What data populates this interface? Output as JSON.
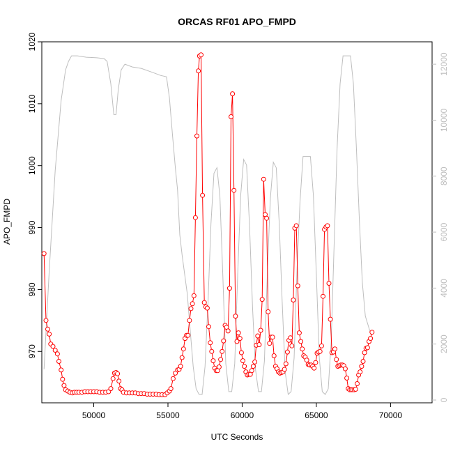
{
  "chart_data": {
    "type": "line",
    "title": "ORCAS RF01 APO_FMPD",
    "xlabel": "UTC Seconds",
    "ylabel": "APO_FMPD",
    "xlim": [
      46500,
      72800
    ],
    "ylim": [
      961.7,
      1020
    ],
    "y2lim": [
      -100,
      12800
    ],
    "x_ticks": [
      50000,
      55000,
      60000,
      65000,
      70000
    ],
    "y_ticks": [
      970,
      980,
      990,
      1000,
      1010,
      1020
    ],
    "y2_ticks": [
      0,
      2000,
      4000,
      6000,
      8000,
      10000,
      12000
    ],
    "grid": false,
    "legend": "none",
    "series": [
      {
        "role": "APO_FMPD (left axis)",
        "color": "#ff0000",
        "style": "line+open-circles",
        "points": [
          [
            46650,
            985.8
          ],
          [
            46780,
            975.0
          ],
          [
            46900,
            973.6
          ],
          [
            47000,
            972.8
          ],
          [
            47100,
            971.2
          ],
          [
            47250,
            970.8
          ],
          [
            47400,
            970.2
          ],
          [
            47550,
            969.6
          ],
          [
            47650,
            968.4
          ],
          [
            47800,
            967.0
          ],
          [
            47900,
            965.5
          ],
          [
            48000,
            964.5
          ],
          [
            48100,
            963.8
          ],
          [
            48250,
            963.6
          ],
          [
            48400,
            963.4
          ],
          [
            48550,
            963.3
          ],
          [
            48700,
            963.4
          ],
          [
            48850,
            963.4
          ],
          [
            49000,
            963.4
          ],
          [
            49200,
            963.4
          ],
          [
            49400,
            963.5
          ],
          [
            49600,
            963.5
          ],
          [
            49800,
            963.5
          ],
          [
            50000,
            963.5
          ],
          [
            50200,
            963.5
          ],
          [
            50400,
            963.4
          ],
          [
            50600,
            963.4
          ],
          [
            50800,
            963.4
          ],
          [
            51000,
            963.5
          ],
          [
            51150,
            964.0
          ],
          [
            51300,
            965.6
          ],
          [
            51400,
            966.5
          ],
          [
            51500,
            966.6
          ],
          [
            51600,
            966.4
          ],
          [
            51700,
            965.2
          ],
          [
            51800,
            964.0
          ],
          [
            51900,
            963.8
          ],
          [
            52000,
            963.4
          ],
          [
            52200,
            963.3
          ],
          [
            52400,
            963.3
          ],
          [
            52600,
            963.3
          ],
          [
            52800,
            963.3
          ],
          [
            53000,
            963.2
          ],
          [
            53200,
            963.2
          ],
          [
            53400,
            963.2
          ],
          [
            53600,
            963.1
          ],
          [
            53800,
            963.1
          ],
          [
            54000,
            963.1
          ],
          [
            54200,
            963.1
          ],
          [
            54400,
            963.0
          ],
          [
            54600,
            963.0
          ],
          [
            54800,
            963.0
          ],
          [
            54950,
            963.3
          ],
          [
            55100,
            963.6
          ],
          [
            55200,
            964.0
          ],
          [
            55350,
            965.6
          ],
          [
            55500,
            966.5
          ],
          [
            55650,
            967.0
          ],
          [
            55750,
            967.1
          ],
          [
            55850,
            967.6
          ],
          [
            55950,
            969.0
          ],
          [
            56050,
            970.4
          ],
          [
            56150,
            972.1
          ],
          [
            56250,
            972.6
          ],
          [
            56350,
            972.6
          ],
          [
            56450,
            975.0
          ],
          [
            56550,
            976.9
          ],
          [
            56650,
            977.7
          ],
          [
            56750,
            979.0
          ],
          [
            56850,
            991.6
          ],
          [
            56950,
            1004.8
          ],
          [
            57050,
            1015.3
          ],
          [
            57130,
            1017.7
          ],
          [
            57230,
            1017.9
          ],
          [
            57330,
            995.2
          ],
          [
            57450,
            977.9
          ],
          [
            57550,
            977.2
          ],
          [
            57650,
            977.0
          ],
          [
            57750,
            974.0
          ],
          [
            57850,
            971.4
          ],
          [
            57950,
            970.0
          ],
          [
            58050,
            968.5
          ],
          [
            58150,
            967.3
          ],
          [
            58250,
            966.9
          ],
          [
            58350,
            966.9
          ],
          [
            58450,
            967.5
          ],
          [
            58550,
            968.7
          ],
          [
            58650,
            970.0
          ],
          [
            58750,
            971.7
          ],
          [
            58850,
            974.2
          ],
          [
            58950,
            973.9
          ],
          [
            59050,
            973.3
          ],
          [
            59150,
            980.2
          ],
          [
            59250,
            1007.9
          ],
          [
            59350,
            1011.6
          ],
          [
            59450,
            996.0
          ],
          [
            59550,
            975.7
          ],
          [
            59650,
            971.6
          ],
          [
            59750,
            973.0
          ],
          [
            59850,
            972.1
          ],
          [
            59950,
            969.8
          ],
          [
            60050,
            968.5
          ],
          [
            60150,
            967.6
          ],
          [
            60250,
            966.7
          ],
          [
            60350,
            966.2
          ],
          [
            60450,
            966.3
          ],
          [
            60550,
            966.3
          ],
          [
            60650,
            966.9
          ],
          [
            60750,
            967.6
          ],
          [
            60850,
            968.3
          ],
          [
            60950,
            971.0
          ],
          [
            61050,
            972.5
          ],
          [
            61150,
            971.1
          ],
          [
            61250,
            973.4
          ],
          [
            61350,
            978.4
          ],
          [
            61450,
            997.8
          ],
          [
            61550,
            992.1
          ],
          [
            61650,
            991.5
          ],
          [
            61750,
            976.4
          ],
          [
            61850,
            971.3
          ],
          [
            61950,
            972.3
          ],
          [
            62050,
            972.3
          ],
          [
            62150,
            969.3
          ],
          [
            62250,
            967.6
          ],
          [
            62350,
            967.2
          ],
          [
            62450,
            966.7
          ],
          [
            62550,
            966.5
          ],
          [
            62650,
            966.6
          ],
          [
            62750,
            966.7
          ],
          [
            62850,
            967.1
          ],
          [
            62950,
            968.0
          ],
          [
            63050,
            969.9
          ],
          [
            63150,
            971.8
          ],
          [
            63250,
            972.2
          ],
          [
            63350,
            970.9
          ],
          [
            63450,
            978.3
          ],
          [
            63550,
            989.9
          ],
          [
            63650,
            990.3
          ],
          [
            63750,
            980.6
          ],
          [
            63850,
            973.0
          ],
          [
            63950,
            971.6
          ],
          [
            64050,
            970.4
          ],
          [
            64150,
            969.3
          ],
          [
            64250,
            969.1
          ],
          [
            64350,
            968.6
          ],
          [
            64450,
            967.9
          ],
          [
            64550,
            967.8
          ],
          [
            64650,
            967.8
          ],
          [
            64750,
            967.6
          ],
          [
            64850,
            967.3
          ],
          [
            64950,
            968.2
          ],
          [
            65050,
            969.7
          ],
          [
            65150,
            969.9
          ],
          [
            65250,
            970.0
          ],
          [
            65350,
            970.9
          ],
          [
            65450,
            978.9
          ],
          [
            65550,
            989.7
          ],
          [
            65650,
            990.1
          ],
          [
            65750,
            990.3
          ],
          [
            65850,
            981.0
          ],
          [
            65950,
            975.2
          ],
          [
            66050,
            969.8
          ],
          [
            66150,
            969.9
          ],
          [
            66250,
            970.4
          ],
          [
            66350,
            968.7
          ],
          [
            66450,
            967.6
          ],
          [
            66550,
            967.7
          ],
          [
            66650,
            967.8
          ],
          [
            66750,
            967.8
          ],
          [
            66850,
            967.7
          ],
          [
            66950,
            967.2
          ],
          [
            67050,
            965.7
          ],
          [
            67150,
            964.0
          ],
          [
            67250,
            963.8
          ],
          [
            67350,
            963.8
          ],
          [
            67450,
            963.8
          ],
          [
            67550,
            963.8
          ],
          [
            67650,
            963.9
          ],
          [
            67750,
            964.8
          ],
          [
            67850,
            966.2
          ],
          [
            67950,
            966.7
          ],
          [
            68050,
            967.6
          ],
          [
            68150,
            968.4
          ],
          [
            68250,
            969.8
          ],
          [
            68350,
            970.5
          ],
          [
            68450,
            970.6
          ],
          [
            68550,
            971.6
          ],
          [
            68650,
            972.1
          ],
          [
            68750,
            973.1
          ]
        ]
      },
      {
        "role": "secondary series (right axis)",
        "color": "#bebebe",
        "style": "line",
        "points": [
          [
            46650,
            1100
          ],
          [
            47000,
            4600
          ],
          [
            47400,
            8200
          ],
          [
            47800,
            10700
          ],
          [
            48100,
            11800
          ],
          [
            48300,
            12100
          ],
          [
            48500,
            12300
          ],
          [
            48900,
            12300
          ],
          [
            49500,
            12250
          ],
          [
            50200,
            12230
          ],
          [
            50700,
            12200
          ],
          [
            50900,
            12100
          ],
          [
            51150,
            11300
          ],
          [
            51350,
            10200
          ],
          [
            51500,
            10200
          ],
          [
            51650,
            11100
          ],
          [
            51850,
            11800
          ],
          [
            52100,
            12000
          ],
          [
            52600,
            11900
          ],
          [
            53200,
            11850
          ],
          [
            54000,
            11700
          ],
          [
            54500,
            11600
          ],
          [
            54900,
            11550
          ],
          [
            55100,
            10800
          ],
          [
            55300,
            9500
          ],
          [
            55500,
            8300
          ],
          [
            55650,
            7500
          ],
          [
            55800,
            5900
          ],
          [
            55950,
            5200
          ],
          [
            56100,
            4600
          ],
          [
            56300,
            3800
          ],
          [
            56500,
            2500
          ],
          [
            56700,
            1200
          ],
          [
            56900,
            400
          ],
          [
            57100,
            200
          ],
          [
            57300,
            200
          ],
          [
            57500,
            1200
          ],
          [
            57700,
            3500
          ],
          [
            57900,
            6300
          ],
          [
            58100,
            8100
          ],
          [
            58300,
            8300
          ],
          [
            58500,
            7300
          ],
          [
            58700,
            4400
          ],
          [
            58900,
            1300
          ],
          [
            59100,
            300
          ],
          [
            59300,
            300
          ],
          [
            59500,
            1300
          ],
          [
            59700,
            4500
          ],
          [
            59900,
            7300
          ],
          [
            60100,
            8600
          ],
          [
            60300,
            8400
          ],
          [
            60500,
            6200
          ],
          [
            60700,
            3300
          ],
          [
            60900,
            1100
          ],
          [
            61100,
            300
          ],
          [
            61300,
            300
          ],
          [
            61500,
            1400
          ],
          [
            61700,
            4600
          ],
          [
            61900,
            7200
          ],
          [
            62100,
            8500
          ],
          [
            62300,
            8300
          ],
          [
            62500,
            6300
          ],
          [
            62700,
            3500
          ],
          [
            62900,
            1000
          ],
          [
            63100,
            200
          ],
          [
            63300,
            300
          ],
          [
            63500,
            1500
          ],
          [
            63700,
            4700
          ],
          [
            63900,
            7100
          ],
          [
            64100,
            8700
          ],
          [
            64300,
            8700
          ],
          [
            64600,
            8700
          ],
          [
            64800,
            7300
          ],
          [
            65000,
            4500
          ],
          [
            65200,
            1500
          ],
          [
            65400,
            300
          ],
          [
            65600,
            200
          ],
          [
            65800,
            400
          ],
          [
            66000,
            2100
          ],
          [
            66200,
            5600
          ],
          [
            66400,
            9000
          ],
          [
            66600,
            11300
          ],
          [
            66800,
            12300
          ],
          [
            67100,
            12300
          ],
          [
            67300,
            12300
          ],
          [
            67500,
            11300
          ],
          [
            67700,
            9000
          ],
          [
            67900,
            6400
          ],
          [
            68100,
            4200
          ],
          [
            68300,
            3000
          ],
          [
            68700,
            2300
          ]
        ]
      }
    ]
  }
}
